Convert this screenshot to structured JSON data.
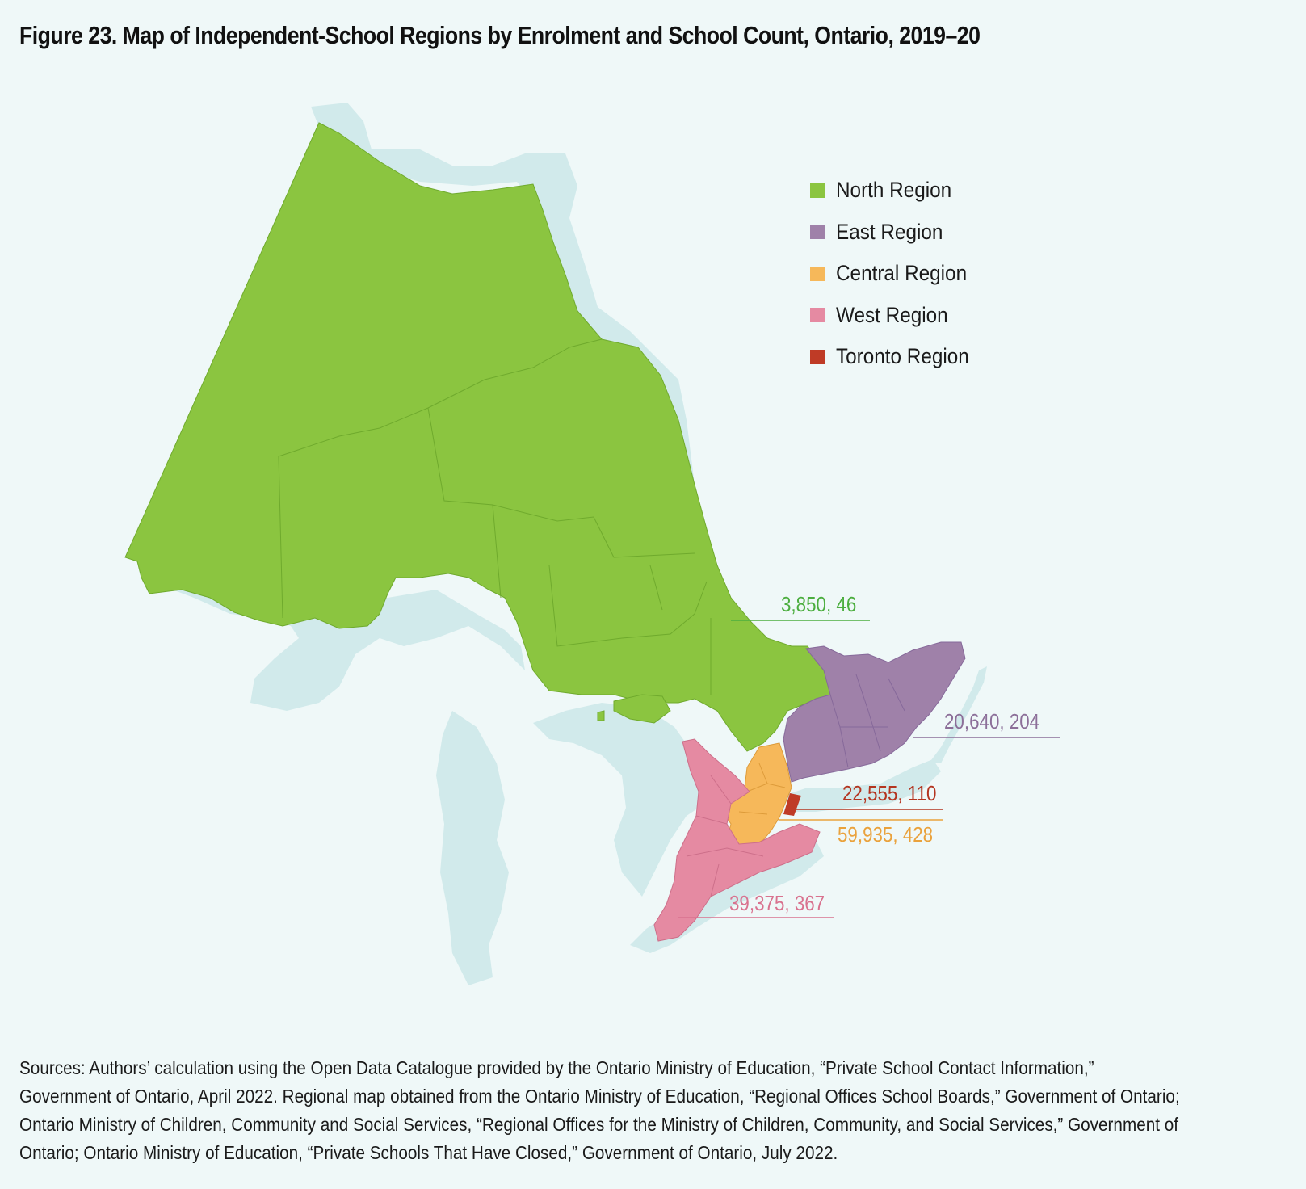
{
  "title": "Figure 23. Map of Independent-School Regions by Enrolment and School Count, Ontario, 2019–20",
  "colors": {
    "background": "#eff8f8",
    "water": "#d1eaeb",
    "north": "#8bc540",
    "east": "#9f81a9",
    "central": "#f6b85a",
    "west": "#e58aa2",
    "toronto": "#bf3b26"
  },
  "legend": [
    {
      "label": "North Region",
      "color": "#8bc540"
    },
    {
      "label": "East Region",
      "color": "#9f81a9"
    },
    {
      "label": "Central Region",
      "color": "#f6b85a"
    },
    {
      "label": "West Region",
      "color": "#e58aa2"
    },
    {
      "label": "Toronto Region",
      "color": "#bf3b26"
    }
  ],
  "regions": {
    "north": {
      "label": "3,850, 46",
      "color": "#4cae3f"
    },
    "east": {
      "label": "20,640, 204",
      "color": "#8c6f99"
    },
    "toronto": {
      "label": "22,555, 110",
      "color": "#b4341f"
    },
    "central": {
      "label": "59,935, 428",
      "color": "#eaa23c"
    },
    "west": {
      "label": "39,375, 367",
      "color": "#d9728f"
    }
  },
  "sources": [
    "Sources: Authors’ calculation using the Open Data Catalogue provided by the Ontario Ministry of Education, “Private School Contact Information,”",
    "Government of Ontario, April 2022. Regional map obtained from the Ontario Ministry of Education, “Regional Offices School Boards,” Government of Ontario;",
    "Ontario Ministry of Children, Community and Social Services, “Regional Offices for the Ministry of Children, Community, and Social Services,” Government of",
    "Ontario; Ontario Ministry of Education, “Private Schools That Have Closed,” Government of Ontario, July 2022."
  ]
}
